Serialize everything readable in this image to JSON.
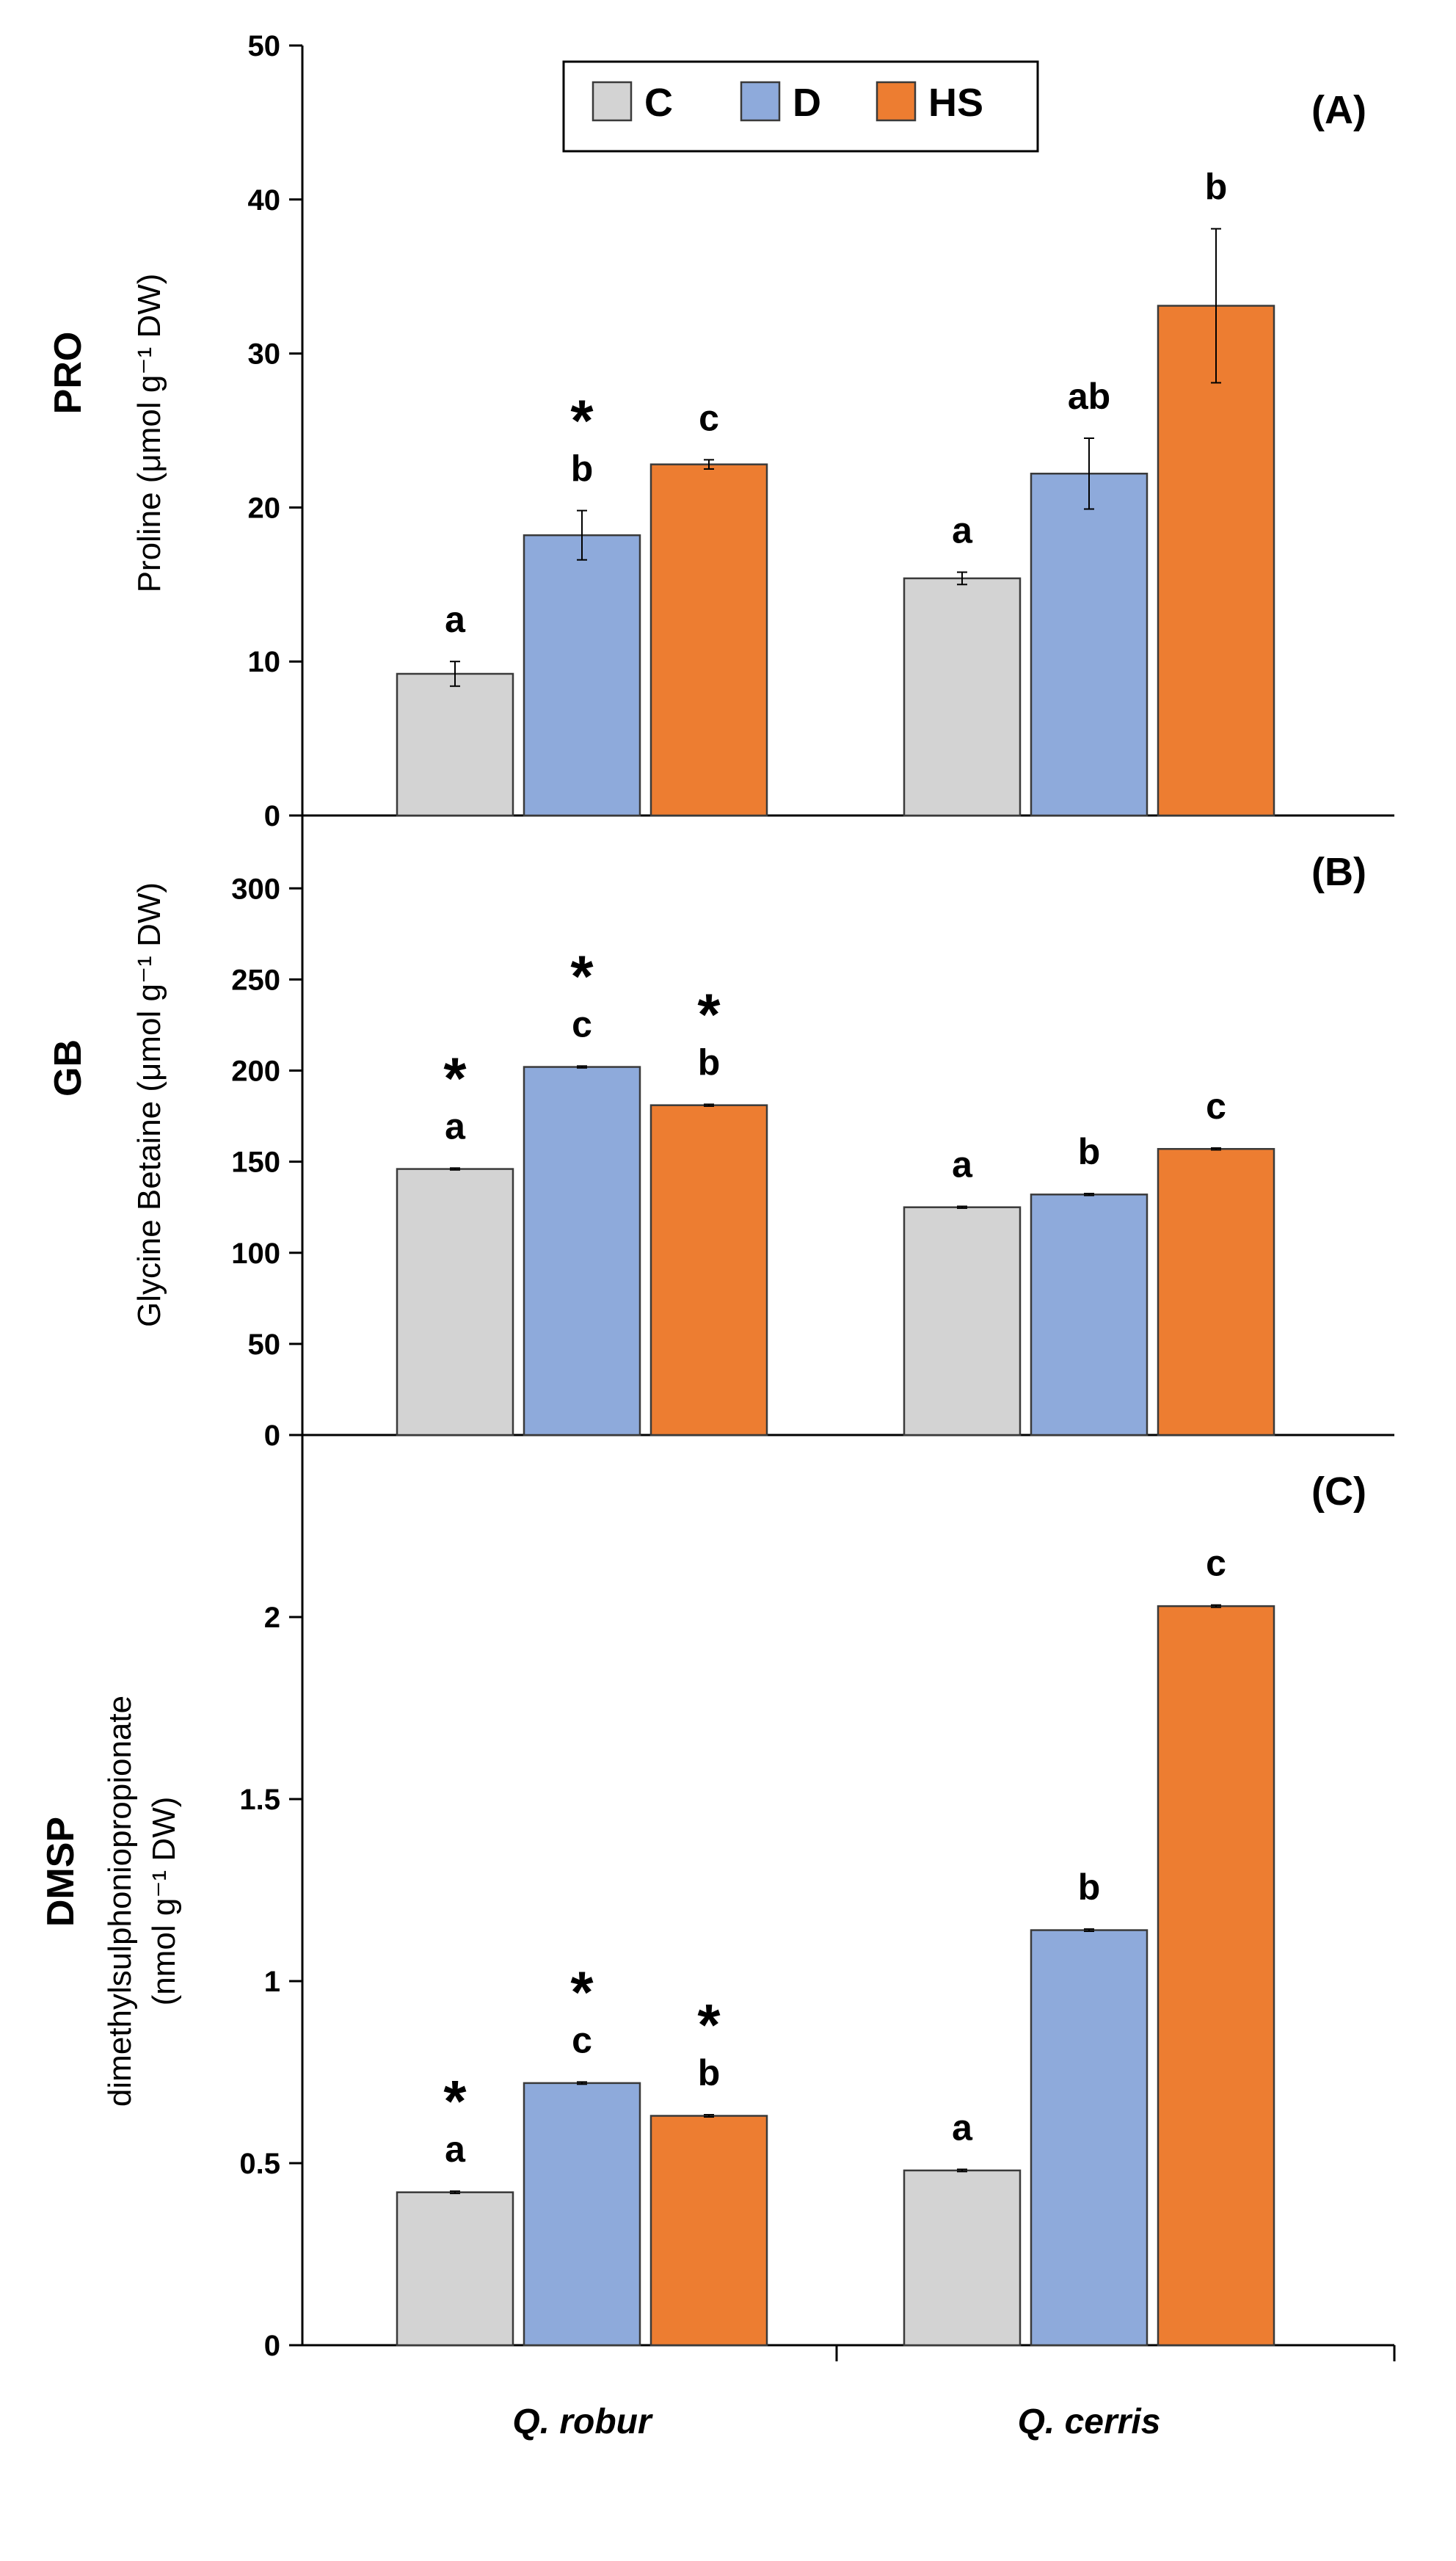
{
  "legend": [
    {
      "label": "C",
      "color": "#d3d3d3"
    },
    {
      "label": "D",
      "color": "#8eaadb"
    },
    {
      "label": "HS",
      "color": "#ed7d31"
    }
  ],
  "chart_data": [
    {
      "type": "bar",
      "panel": "(A)",
      "row_label": "PRO",
      "ylabel": "Proline (μmol g⁻¹ DW)",
      "categories": [
        "Q. robur",
        "Q. cerris"
      ],
      "ylim": [
        0,
        50
      ],
      "yticks": [
        "0",
        "10",
        "20",
        "30",
        "40",
        "50"
      ],
      "series": [
        {
          "name": "C",
          "values": [
            9.2,
            15.4
          ],
          "errors": [
            0.8,
            0.4
          ],
          "letters": [
            "a",
            "a"
          ],
          "stars": [
            false,
            false
          ]
        },
        {
          "name": "D",
          "values": [
            18.2,
            22.2
          ],
          "errors": [
            1.6,
            2.3
          ],
          "letters": [
            "b",
            "ab"
          ],
          "stars": [
            true,
            false
          ]
        },
        {
          "name": "HS",
          "values": [
            22.8,
            33.1
          ],
          "errors": [
            0.3,
            5.0
          ],
          "letters": [
            "c",
            "b"
          ],
          "stars": [
            false,
            false
          ]
        }
      ]
    },
    {
      "type": "bar",
      "panel": "(B)",
      "row_label": "GB",
      "ylabel": "Glycine Betaine (μmol g⁻¹ DW)",
      "categories": [
        "Q. robur",
        "Q. cerris"
      ],
      "ylim": [
        0,
        340
      ],
      "yticks": [
        "0",
        "50",
        "100",
        "150",
        "200",
        "250",
        "300"
      ],
      "series": [
        {
          "name": "C",
          "values": [
            146,
            125
          ],
          "errors": [
            0.5,
            0.5
          ],
          "letters": [
            "a",
            "a"
          ],
          "stars": [
            true,
            false
          ]
        },
        {
          "name": "D",
          "values": [
            202,
            132
          ],
          "errors": [
            0.5,
            0.5
          ],
          "letters": [
            "c",
            "b"
          ],
          "stars": [
            true,
            false
          ]
        },
        {
          "name": "HS",
          "values": [
            181,
            157
          ],
          "errors": [
            0.5,
            0.5
          ],
          "letters": [
            "b",
            "c"
          ],
          "stars": [
            true,
            false
          ]
        }
      ]
    },
    {
      "type": "bar",
      "panel": "(C)",
      "row_label": "DMSP",
      "ylabel_lines": [
        "dimethylsulphoniopropionate",
        "(nmol g⁻¹ DW)"
      ],
      "categories": [
        "Q. robur",
        "Q. cerris"
      ],
      "ylim": [
        0,
        2.5
      ],
      "yticks": [
        "0",
        "0.5",
        "1",
        "1.5",
        "2"
      ],
      "series": [
        {
          "name": "C",
          "values": [
            0.42,
            0.48
          ],
          "errors": [
            0.003,
            0.003
          ],
          "letters": [
            "a",
            "a"
          ],
          "stars": [
            true,
            false
          ]
        },
        {
          "name": "D",
          "values": [
            0.72,
            1.14
          ],
          "errors": [
            0.003,
            0.003
          ],
          "letters": [
            "c",
            "b"
          ],
          "stars": [
            true,
            false
          ]
        },
        {
          "name": "HS",
          "values": [
            0.63,
            2.03
          ],
          "errors": [
            0.003,
            0.003
          ],
          "letters": [
            "b",
            "c"
          ],
          "stars": [
            true,
            false
          ]
        }
      ]
    }
  ]
}
